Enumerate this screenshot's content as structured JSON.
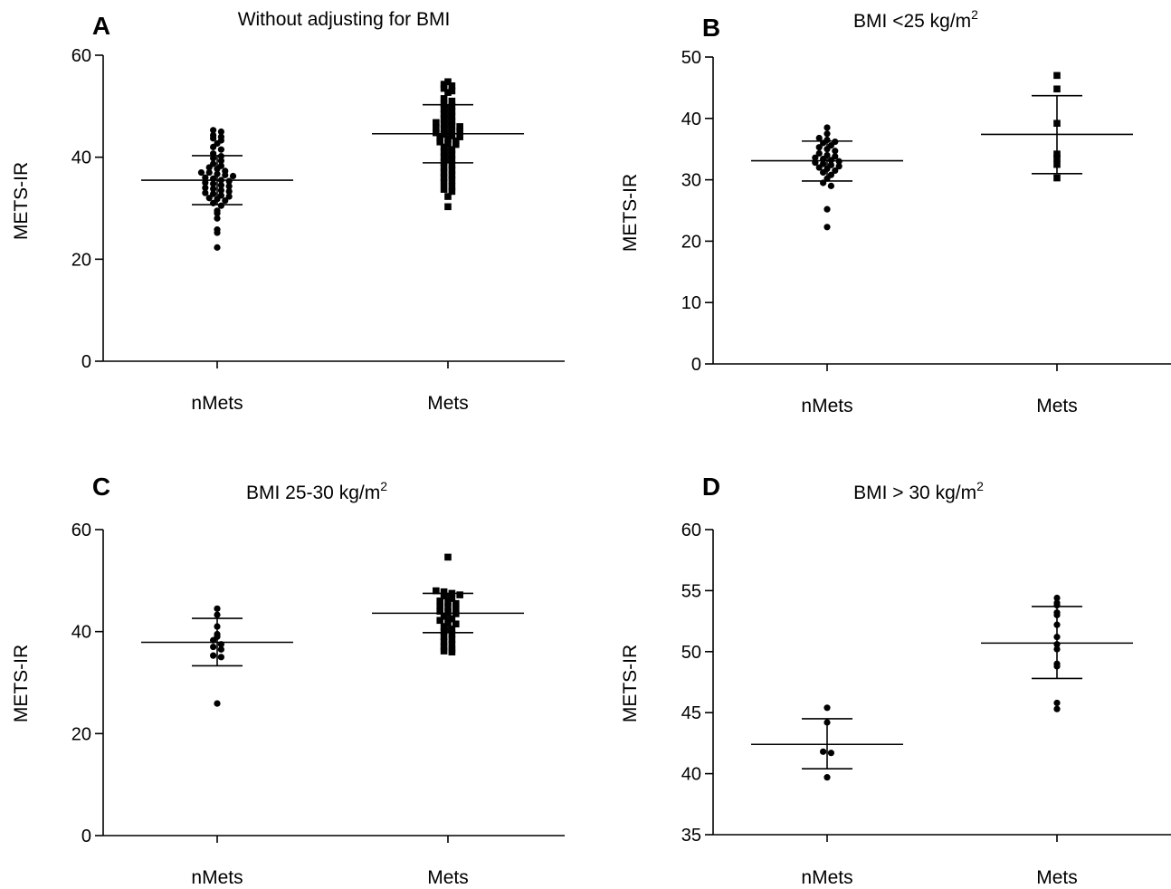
{
  "chart_data": [
    {
      "type": "scatter",
      "panel_label": "A",
      "title": "Without adjusting for BMI",
      "title_sup": "",
      "ylabel": "METS-IR",
      "xlabel": "",
      "ylim": [
        0,
        60
      ],
      "yticks": [
        0,
        20,
        40,
        60
      ],
      "categories": [
        "nMets",
        "Mets"
      ],
      "grid": false,
      "series": [
        {
          "category": "nMets",
          "marker": "circle",
          "mean": 35.5,
          "sd_low": 30.7,
          "sd_high": 40.3,
          "values": [
            45.3,
            45.0,
            44.3,
            44.0,
            43.7,
            43.3,
            42.7,
            42.0,
            41.5,
            40.7,
            40.2,
            39.8,
            39.3,
            38.7,
            38.3,
            38.0,
            37.7,
            37.3,
            37.0,
            37.0,
            36.7,
            36.5,
            36.3,
            36.0,
            35.8,
            35.5,
            35.3,
            35.0,
            34.8,
            34.5,
            34.3,
            34.0,
            33.8,
            33.5,
            33.3,
            33.0,
            32.8,
            32.5,
            32.3,
            32.0,
            31.8,
            31.5,
            31.0,
            30.5,
            29.5,
            29.0,
            28.0,
            25.8,
            25.2,
            22.3
          ]
        },
        {
          "category": "Mets",
          "marker": "square",
          "mean": 44.6,
          "sd_low": 38.9,
          "sd_high": 50.3,
          "values": [
            54.8,
            54.3,
            54.0,
            53.5,
            53.0,
            52.7,
            51.5,
            51.0,
            50.5,
            50.0,
            49.5,
            49.0,
            48.5,
            48.0,
            47.5,
            47.0,
            46.8,
            46.5,
            46.2,
            46.0,
            45.8,
            45.5,
            45.2,
            45.0,
            44.8,
            44.5,
            44.2,
            44.0,
            43.8,
            43.5,
            43.2,
            43.0,
            42.8,
            42.5,
            42.0,
            41.5,
            41.0,
            40.5,
            40.0,
            39.5,
            39.0,
            38.5,
            38.0,
            37.5,
            37.0,
            36.5,
            36.0,
            35.5,
            35.0,
            34.3,
            33.7,
            33.3,
            32.3,
            30.3
          ]
        }
      ]
    },
    {
      "type": "scatter",
      "panel_label": "B",
      "title": "BMI <25 kg/m",
      "title_sup": "2",
      "ylabel": "METS-IR",
      "xlabel": "",
      "ylim": [
        0,
        50
      ],
      "yticks": [
        0,
        10,
        20,
        30,
        40,
        50
      ],
      "categories": [
        "nMets",
        "Mets"
      ],
      "grid": false,
      "series": [
        {
          "category": "nMets",
          "marker": "circle",
          "mean": 33.1,
          "sd_low": 29.8,
          "sd_high": 36.3,
          "values": [
            38.5,
            37.5,
            36.8,
            36.5,
            36.2,
            36.0,
            35.6,
            35.3,
            35.0,
            34.7,
            34.3,
            34.0,
            33.8,
            33.6,
            33.4,
            33.2,
            33.0,
            32.8,
            32.6,
            32.4,
            32.2,
            32.0,
            31.8,
            31.5,
            31.2,
            30.8,
            30.2,
            29.5,
            29.0,
            25.2,
            22.3
          ]
        },
        {
          "category": "Mets",
          "marker": "square",
          "mean": 37.4,
          "sd_low": 31.0,
          "sd_high": 43.7,
          "values": [
            47.0,
            44.8,
            39.2,
            34.2,
            33.5,
            32.5,
            30.3
          ]
        }
      ]
    },
    {
      "type": "scatter",
      "panel_label": "C",
      "title": "BMI 25-30 kg/m",
      "title_sup": "2",
      "ylabel": "METS-IR",
      "xlabel": "",
      "ylim": [
        0,
        60
      ],
      "yticks": [
        0,
        20,
        40,
        60
      ],
      "categories": [
        "nMets",
        "Mets"
      ],
      "grid": false,
      "series": [
        {
          "category": "nMets",
          "marker": "circle",
          "mean": 37.9,
          "sd_low": 33.3,
          "sd_high": 42.6,
          "values": [
            44.5,
            43.3,
            41.0,
            39.5,
            39.0,
            38.3,
            37.5,
            37.0,
            36.5,
            35.3,
            35.0,
            25.9
          ]
        },
        {
          "category": "Mets",
          "marker": "square",
          "mean": 43.6,
          "sd_low": 39.8,
          "sd_high": 47.5,
          "values": [
            54.6,
            48.0,
            47.8,
            47.5,
            47.2,
            47.0,
            46.5,
            46.0,
            45.8,
            45.5,
            45.0,
            44.8,
            44.5,
            44.0,
            43.8,
            43.5,
            43.0,
            42.5,
            42.2,
            41.8,
            41.5,
            41.0,
            40.5,
            40.0,
            39.5,
            39.0,
            38.5,
            38.0,
            37.5,
            37.0,
            36.5,
            36.2,
            36.0
          ]
        }
      ]
    },
    {
      "type": "scatter",
      "panel_label": "D",
      "title": "BMI > 30 kg/m",
      "title_sup": "2",
      "ylabel": "METS-IR",
      "xlabel": "",
      "ylim": [
        35,
        60
      ],
      "yticks": [
        35,
        40,
        45,
        50,
        55,
        60
      ],
      "categories": [
        "nMets",
        "Mets"
      ],
      "grid": false,
      "series": [
        {
          "category": "nMets",
          "marker": "circle",
          "mean": 42.4,
          "sd_low": 40.4,
          "sd_high": 44.5,
          "values": [
            45.4,
            44.2,
            41.8,
            41.7,
            39.7
          ]
        },
        {
          "category": "Mets",
          "marker": "circle",
          "mean": 50.7,
          "sd_low": 47.8,
          "sd_high": 53.7,
          "values": [
            54.4,
            54.0,
            53.8,
            53.2,
            53.0,
            52.2,
            51.2,
            50.6,
            50.2,
            49.0,
            48.8,
            45.8,
            45.3
          ]
        }
      ]
    }
  ]
}
